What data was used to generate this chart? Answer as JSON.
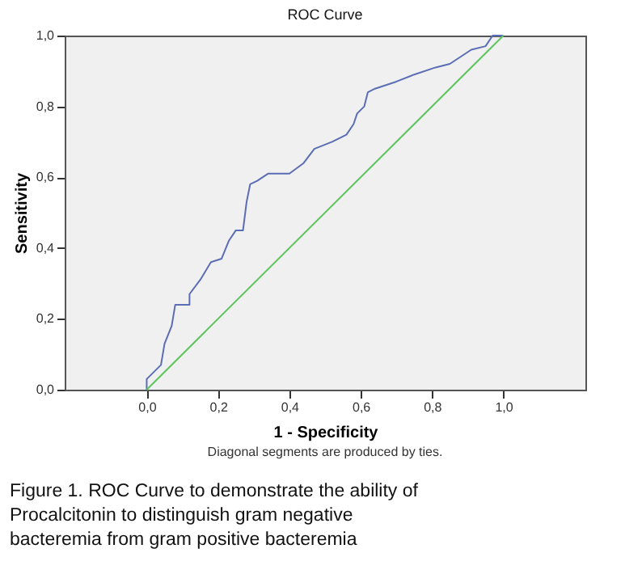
{
  "chart_data": {
    "type": "line",
    "title": "ROC Curve",
    "xlabel": "1 - Specificity",
    "ylabel": "Sensitivity",
    "xlim": [
      -0.23,
      1.23
    ],
    "ylim": [
      0,
      1
    ],
    "xticks": [
      {
        "value": 0,
        "label": "0,0"
      },
      {
        "value": 0.2,
        "label": "0,2"
      },
      {
        "value": 0.4,
        "label": "0,4"
      },
      {
        "value": 0.6,
        "label": "0,6"
      },
      {
        "value": 0.8,
        "label": "0,8"
      },
      {
        "value": 1,
        "label": "1,0"
      }
    ],
    "yticks": [
      {
        "value": 0,
        "label": "0,0"
      },
      {
        "value": 0.2,
        "label": "0,2"
      },
      {
        "value": 0.4,
        "label": "0,4"
      },
      {
        "value": 0.6,
        "label": "0,6"
      },
      {
        "value": 0.8,
        "label": "0,8"
      },
      {
        "value": 1,
        "label": "1,0"
      }
    ],
    "grid": false,
    "legend": false,
    "marker": "none",
    "line_style": "solid",
    "series": [
      {
        "color": "#5a6db5",
        "x": [
          0,
          0,
          0.04,
          0.05,
          0.07,
          0.08,
          0.12,
          0.12,
          0.15,
          0.18,
          0.21,
          0.23,
          0.25,
          0.27,
          0.28,
          0.29,
          0.31,
          0.34,
          0.4,
          0.44,
          0.47,
          0.52,
          0.56,
          0.58,
          0.59,
          0.61,
          0.62,
          0.64,
          0.7,
          0.75,
          0.81,
          0.85,
          0.88,
          0.91,
          0.95,
          0.97,
          1
        ],
        "values": [
          0,
          0.03,
          0.07,
          0.13,
          0.18,
          0.24,
          0.24,
          0.27,
          0.31,
          0.36,
          0.37,
          0.42,
          0.45,
          0.45,
          0.53,
          0.58,
          0.59,
          0.61,
          0.61,
          0.64,
          0.68,
          0.7,
          0.72,
          0.75,
          0.78,
          0.8,
          0.84,
          0.85,
          0.87,
          0.89,
          0.91,
          0.92,
          0.94,
          0.96,
          0.97,
          1,
          1
        ]
      },
      {
        "color": "#5ec45e",
        "x": [
          0,
          1
        ],
        "values": [
          0,
          1
        ]
      }
    ],
    "annotations": [
      "Diagonal segments are produced by ties.",
      "Figure 1. ROC Curve to demonstrate the ability of Procalcitonin to distinguish gram negative bacteremia from gram positive bacteremia"
    ]
  }
}
